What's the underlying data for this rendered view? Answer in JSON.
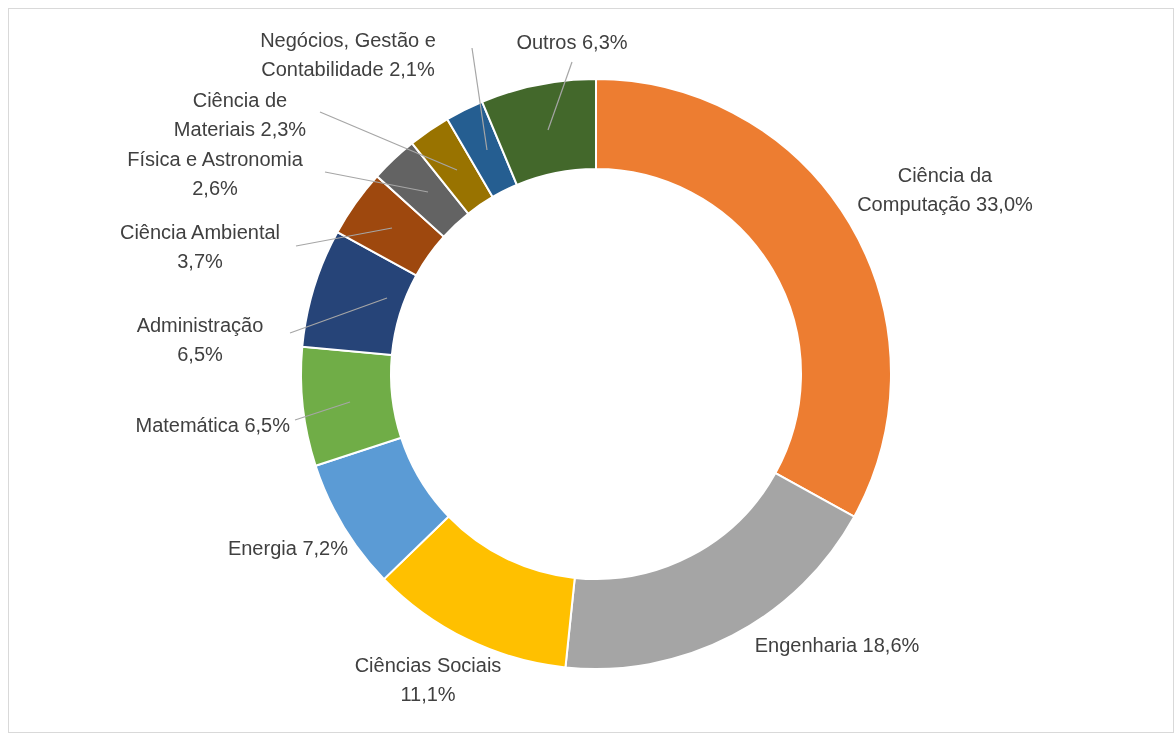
{
  "chart_data": {
    "type": "donut",
    "categories": [
      "Ciência da Computação",
      "Engenharia",
      "Ciências Sociais",
      "Energia",
      "Matemática",
      "Administração",
      "Ciência Ambiental",
      "Física e Astronomia",
      "Ciência de Materiais",
      "Negócios, Gestão e Contabilidade",
      "Outros"
    ],
    "values": [
      33.0,
      18.6,
      11.1,
      7.2,
      6.5,
      6.5,
      3.7,
      2.6,
      2.3,
      2.1,
      6.3
    ],
    "value_labels": [
      "33,0%",
      "18,6%",
      "11,1%",
      "7,2%",
      "6,5%",
      "6,5%",
      "3,7%",
      "2,6%",
      "2,3%",
      "2,1%",
      "6,3%"
    ],
    "colors": [
      "#ed7d31",
      "#a5a5a5",
      "#ffc000",
      "#5b9bd5",
      "#70ad47",
      "#264478",
      "#9e480e",
      "#636363",
      "#997300",
      "#255e91",
      "#43682b"
    ]
  }
}
